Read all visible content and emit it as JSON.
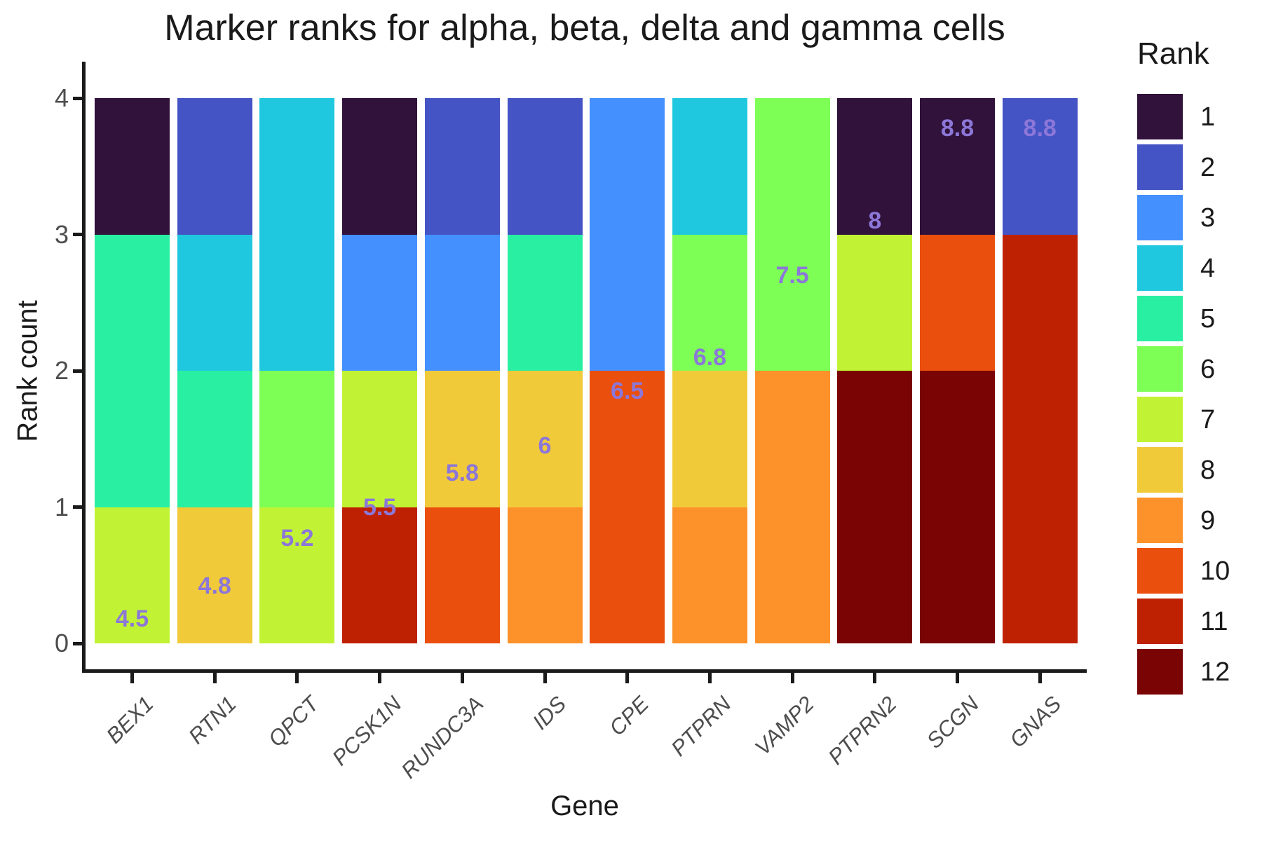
{
  "title": "Marker ranks for alpha, beta, delta and gamma cells",
  "x_axis": {
    "title": "Gene",
    "tick_labels": [
      "BEX1",
      "RTN1",
      "QPCT",
      "PCSK1N",
      "RUNDC3A",
      "IDS",
      "CPE",
      "PTPRN",
      "VAMP2",
      "PTPRN2",
      "SCGN",
      "GNAS"
    ]
  },
  "y_axis": {
    "title": "Rank count",
    "tick_labels": [
      "0",
      "1",
      "2",
      "3",
      "4"
    ]
  },
  "legend": {
    "title": "Rank",
    "entries": [
      {
        "label": "1",
        "color": "#30123B"
      },
      {
        "label": "2",
        "color": "#4454C4"
      },
      {
        "label": "3",
        "color": "#4490FE"
      },
      {
        "label": "4",
        "color": "#1FC8DE"
      },
      {
        "label": "5",
        "color": "#29EFA2"
      },
      {
        "label": "6",
        "color": "#7DFF56"
      },
      {
        "label": "7",
        "color": "#C1F334"
      },
      {
        "label": "8",
        "color": "#F1CA3A"
      },
      {
        "label": "9",
        "color": "#FE922A"
      },
      {
        "label": "10",
        "color": "#EA4F0D"
      },
      {
        "label": "11",
        "color": "#BE2102"
      },
      {
        "label": "12",
        "color": "#7A0403"
      }
    ]
  },
  "colors": {
    "value_label": "#8C77D8",
    "axis_text": "#4D4D4D",
    "title_text": "#1A1A1A"
  },
  "chart_data": {
    "type": "bar",
    "stacked": true,
    "orientation": "vertical",
    "title": "Marker ranks for alpha, beta, delta and gamma cells",
    "xlabel": "Gene",
    "ylabel": "Rank count",
    "ylim": [
      0,
      4
    ],
    "y_ticks": [
      0,
      1,
      2,
      3,
      4
    ],
    "grid": false,
    "legend_position": "right",
    "legend_title": "Rank",
    "rank_palette": {
      "1": "#30123B",
      "2": "#4454C4",
      "3": "#4490FE",
      "4": "#1FC8DE",
      "5": "#29EFA2",
      "6": "#7DFF56",
      "7": "#C1F334",
      "8": "#F1CA3A",
      "9": "#FE922A",
      "10": "#EA4F0D",
      "11": "#BE2102",
      "12": "#7A0403"
    },
    "categories": [
      "BEX1",
      "RTN1",
      "QPCT",
      "PCSK1N",
      "RUNDC3A",
      "IDS",
      "CPE",
      "PTPRN",
      "VAMP2",
      "PTPRN2",
      "SCGN",
      "GNAS"
    ],
    "bars": [
      {
        "gene": "BEX1",
        "segments_bottom_to_top": [
          {
            "rank": 7,
            "count": 1
          },
          {
            "rank": 5,
            "count": 2
          },
          {
            "rank": 1,
            "count": 1
          }
        ],
        "mean_rank_label": "4.5",
        "label_y": 0.18
      },
      {
        "gene": "RTN1",
        "segments_bottom_to_top": [
          {
            "rank": 8,
            "count": 1
          },
          {
            "rank": 5,
            "count": 1
          },
          {
            "rank": 4,
            "count": 1
          },
          {
            "rank": 2,
            "count": 1
          }
        ],
        "mean_rank_label": "4.8",
        "label_y": 0.42
      },
      {
        "gene": "QPCT",
        "segments_bottom_to_top": [
          {
            "rank": 7,
            "count": 1
          },
          {
            "rank": 6,
            "count": 1
          },
          {
            "rank": 4,
            "count": 2
          }
        ],
        "mean_rank_label": "5.2",
        "label_y": 0.77
      },
      {
        "gene": "PCSK1N",
        "segments_bottom_to_top": [
          {
            "rank": 11,
            "count": 1
          },
          {
            "rank": 7,
            "count": 1
          },
          {
            "rank": 3,
            "count": 1
          },
          {
            "rank": 1,
            "count": 1
          }
        ],
        "mean_rank_label": "5.5",
        "label_y": 1.0
      },
      {
        "gene": "RUNDC3A",
        "segments_bottom_to_top": [
          {
            "rank": 10,
            "count": 1
          },
          {
            "rank": 8,
            "count": 1
          },
          {
            "rank": 3,
            "count": 1
          },
          {
            "rank": 2,
            "count": 1
          }
        ],
        "mean_rank_label": "5.8",
        "label_y": 1.25
      },
      {
        "gene": "IDS",
        "segments_bottom_to_top": [
          {
            "rank": 9,
            "count": 1
          },
          {
            "rank": 8,
            "count": 1
          },
          {
            "rank": 5,
            "count": 1
          },
          {
            "rank": 2,
            "count": 1
          }
        ],
        "mean_rank_label": "6",
        "label_y": 1.45
      },
      {
        "gene": "CPE",
        "segments_bottom_to_top": [
          {
            "rank": 10,
            "count": 2
          },
          {
            "rank": 3,
            "count": 2
          }
        ],
        "mean_rank_label": "6.5",
        "label_y": 1.85
      },
      {
        "gene": "PTPRN",
        "segments_bottom_to_top": [
          {
            "rank": 9,
            "count": 1
          },
          {
            "rank": 8,
            "count": 1
          },
          {
            "rank": 6,
            "count": 1
          },
          {
            "rank": 4,
            "count": 1
          }
        ],
        "mean_rank_label": "6.8",
        "label_y": 2.1
      },
      {
        "gene": "VAMP2",
        "segments_bottom_to_top": [
          {
            "rank": 9,
            "count": 2
          },
          {
            "rank": 6,
            "count": 2
          }
        ],
        "mean_rank_label": "7.5",
        "label_y": 2.7
      },
      {
        "gene": "PTPRN2",
        "segments_bottom_to_top": [
          {
            "rank": 12,
            "count": 2
          },
          {
            "rank": 7,
            "count": 1
          },
          {
            "rank": 1,
            "count": 1
          }
        ],
        "mean_rank_label": "8",
        "label_y": 3.1
      },
      {
        "gene": "SCGN",
        "segments_bottom_to_top": [
          {
            "rank": 12,
            "count": 2
          },
          {
            "rank": 10,
            "count": 1
          },
          {
            "rank": 1,
            "count": 1
          }
        ],
        "mean_rank_label": "8.8",
        "label_y": 3.78
      },
      {
        "gene": "GNAS",
        "segments_bottom_to_top": [
          {
            "rank": 11,
            "count": 3
          },
          {
            "rank": 2,
            "count": 1
          }
        ],
        "mean_rank_label": "8.8",
        "label_y": 3.78
      }
    ]
  }
}
